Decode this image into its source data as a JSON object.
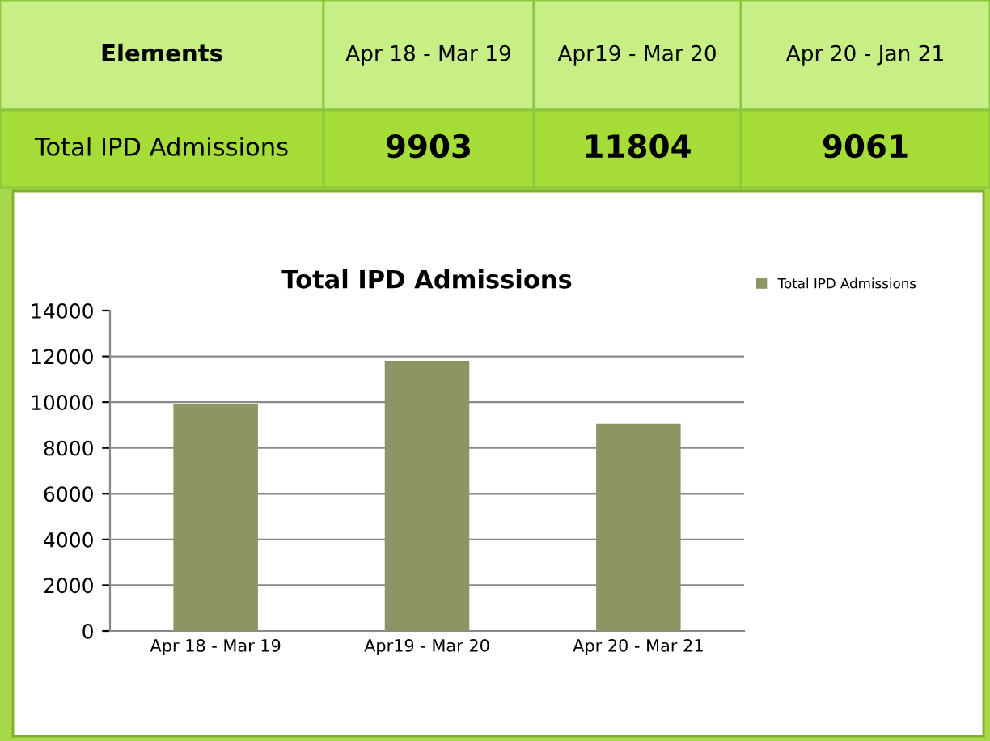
{
  "chart_data": {
    "type": "bar",
    "title": "Total IPD Admissions",
    "categories": [
      "Apr 18 - Mar 19",
      "Apr19 - Mar 20",
      "Apr 20 - Mar 21"
    ],
    "series": [
      {
        "name": "Total IPD Admissions",
        "color": "#8f9464",
        "values": [
          9903,
          11804,
          9061
        ]
      }
    ],
    "ylim": [
      0,
      14000
    ],
    "yticks": [
      0,
      2000,
      4000,
      6000,
      8000,
      10000,
      12000,
      14000
    ],
    "grid": "y",
    "legend": "top right",
    "annotations": [
      "Elements",
      "Apr 18 - Mar 19",
      "Apr19 - Mar 20",
      "Apr 20 - Jan 21",
      "Total IPD Admissions",
      "9903",
      "11804",
      "9061"
    ]
  }
}
